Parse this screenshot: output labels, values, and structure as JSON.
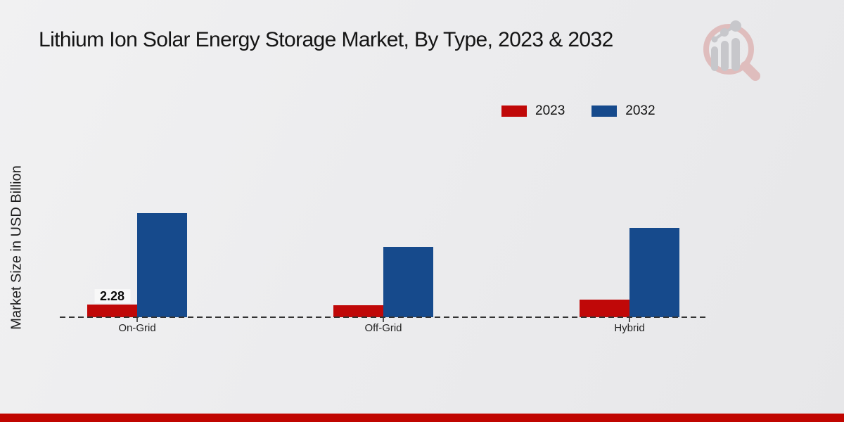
{
  "page": {
    "title": "Lithium Ion Solar Energy Storage Market, By Type, 2023 & 2032"
  },
  "y_axis": {
    "label": "Market Size in USD Billion"
  },
  "icons": {
    "logo": "magnifier-bar-chart-logo"
  },
  "colors": {
    "series_2023": "#c00808",
    "series_2032": "#164a8c",
    "footer_bar": "#c00500",
    "axis_line": "#333333",
    "logo_pink": "#dfbdbd",
    "logo_gray": "#c7c7cb"
  },
  "chart_data": {
    "type": "bar",
    "title": "Lithium Ion Solar Energy Storage Market, By Type, 2023 & 2032",
    "categories": [
      "On-Grid",
      "Off-Grid",
      "Hybrid"
    ],
    "series": [
      {
        "name": "2023",
        "color": "#c00808",
        "values": [
          2.28,
          2.2,
          3.2
        ],
        "labels": [
          "2.28",
          "",
          ""
        ]
      },
      {
        "name": "2032",
        "color": "#164a8c",
        "values": [
          19.3,
          13.0,
          16.5
        ],
        "labels": [
          "",
          "",
          ""
        ]
      }
    ],
    "xlabel": "",
    "ylabel": "Market Size in USD Billion",
    "ylim": [
      0,
      20
    ],
    "grid": false,
    "y_axis_ticks_visible": false,
    "baseline_style": "dashed",
    "legend_position": "top-right"
  }
}
